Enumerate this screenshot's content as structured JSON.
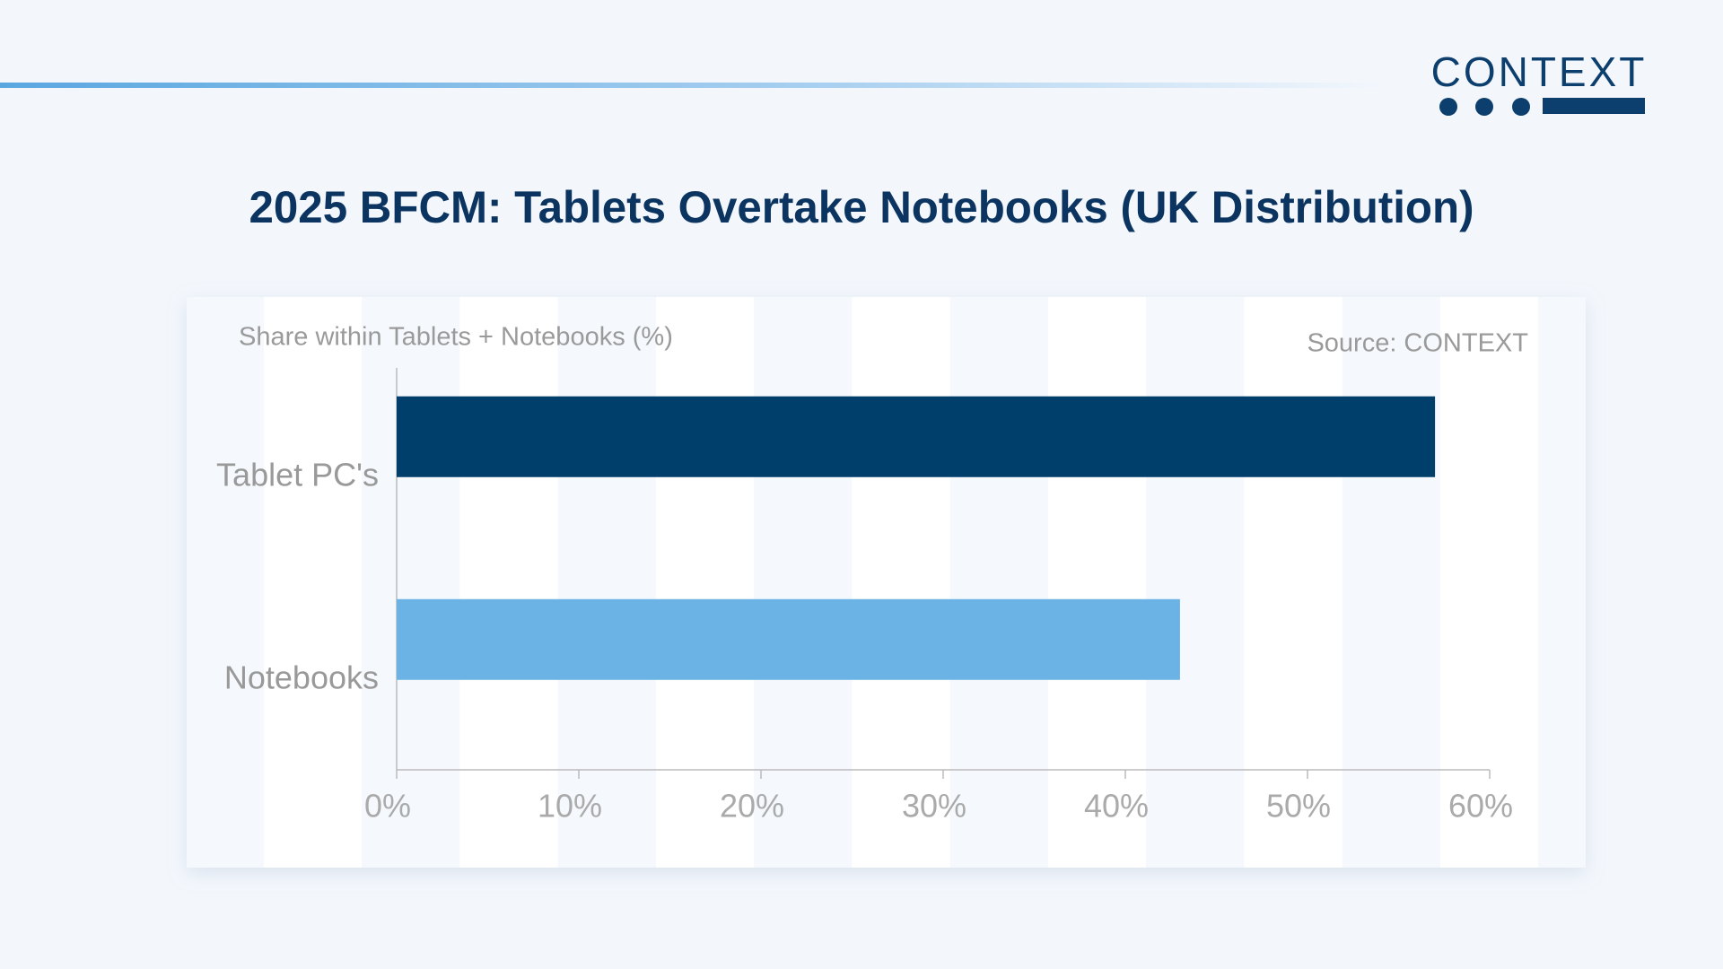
{
  "logo": "CONTEXT",
  "chart_data": {
    "type": "bar",
    "orientation": "horizontal",
    "title": "2025 BFCM: Tablets Overtake Notebooks (UK Distribution)",
    "x_label": "Share within Tablets + Notebooks (%)",
    "source": "Source: CONTEXT",
    "categories": [
      "Tablet PC's",
      "Notebooks"
    ],
    "values": [
      57,
      43
    ],
    "colors": [
      "#003f6b",
      "#6ab3e4"
    ],
    "xlim": [
      0,
      60
    ],
    "xticks": [
      {
        "value": 0,
        "label": "0%"
      },
      {
        "value": 10,
        "label": "10%"
      },
      {
        "value": 20,
        "label": "20%"
      },
      {
        "value": 30,
        "label": "30%"
      },
      {
        "value": 40,
        "label": "40%"
      },
      {
        "value": 50,
        "label": "50%"
      },
      {
        "value": 60,
        "label": "60%"
      }
    ]
  }
}
